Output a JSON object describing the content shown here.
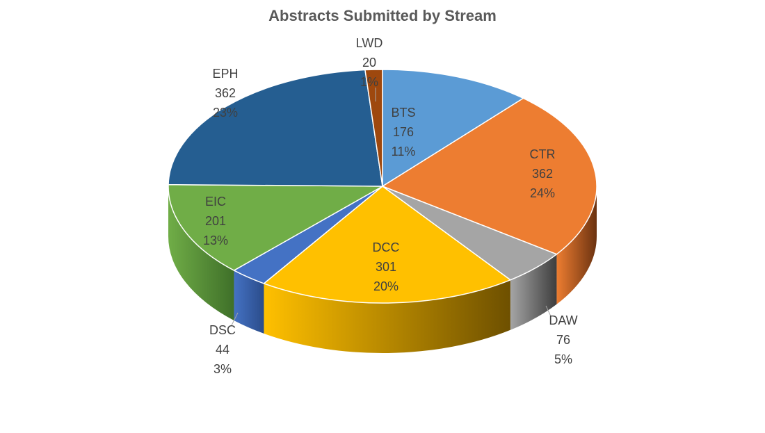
{
  "chart_data": {
    "type": "pie",
    "title": "Abstracts Submitted by Stream",
    "legend": "none",
    "slices": [
      {
        "label": "BTS",
        "value": 176,
        "percent": "11%",
        "color": "#5B9BD5",
        "dark": "#2E5F8F"
      },
      {
        "label": "CTR",
        "value": 362,
        "percent": "24%",
        "color": "#ED7D31",
        "dark": "#6B3210"
      },
      {
        "label": "DAW",
        "value": 76,
        "percent": "5%",
        "color": "#A5A5A5",
        "dark": "#3E3E3E"
      },
      {
        "label": "DCC",
        "value": 301,
        "percent": "20%",
        "color": "#FFC000",
        "dark": "#6E5000"
      },
      {
        "label": "DSC",
        "value": 44,
        "percent": "3%",
        "color": "#4472C4",
        "dark": "#2B4C8A"
      },
      {
        "label": "EIC",
        "value": 201,
        "percent": "13%",
        "color": "#70AD47",
        "dark": "#3F7029"
      },
      {
        "label": "EPH",
        "value": 362,
        "percent": "23%",
        "color": "#255E91",
        "dark": "#173B5C"
      },
      {
        "label": "LWD",
        "value": 20,
        "percent": "1%",
        "color": "#9E480E",
        "dark": "#5A2807"
      }
    ]
  }
}
